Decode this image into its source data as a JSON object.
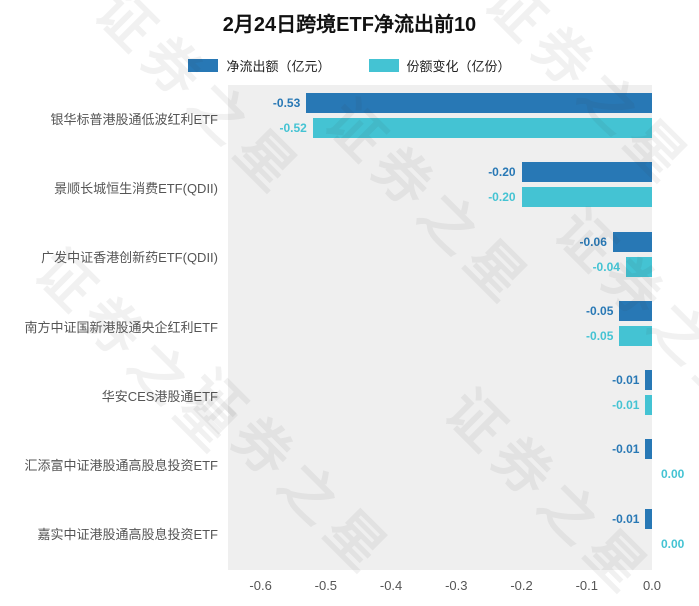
{
  "title": "2月24日跨境ETF净流出前10",
  "watermark_text": "证券之星",
  "legend": {
    "items": [
      {
        "label": "净流出额（亿元）",
        "color": "#2878b5"
      },
      {
        "label": "份额变化（亿份）",
        "color": "#44c3d3"
      }
    ]
  },
  "chart_data": {
    "type": "bar",
    "orientation": "horizontal",
    "title": "2月24日跨境ETF净流出前10",
    "categories": [
      "银华标普港股通低波红利ETF",
      "景顺长城恒生消费ETF(QDII)",
      "广发中证香港创新药ETF(QDII)",
      "南方中证国新港股通央企红利ETF",
      "华安CES港股通ETF",
      "汇添富中证港股通高股息投资ETF",
      "嘉实中证港股通高股息投资ETF"
    ],
    "series": [
      {
        "name": "净流出额（亿元）",
        "color": "#2878b5",
        "values": [
          -0.53,
          -0.2,
          -0.06,
          -0.05,
          -0.01,
          -0.01,
          -0.01
        ]
      },
      {
        "name": "份额变化（亿份）",
        "color": "#44c3d3",
        "values": [
          -0.52,
          -0.2,
          -0.04,
          -0.05,
          -0.01,
          0.0,
          0.0
        ]
      }
    ],
    "xlim": [
      -0.65,
      0
    ],
    "xticks": [
      "-0.6",
      "-0.5",
      "-0.4",
      "-0.3",
      "-0.2",
      "-0.1",
      "0.0"
    ],
    "grid": false,
    "legend_position": "top",
    "plot_background": "#efefef"
  }
}
